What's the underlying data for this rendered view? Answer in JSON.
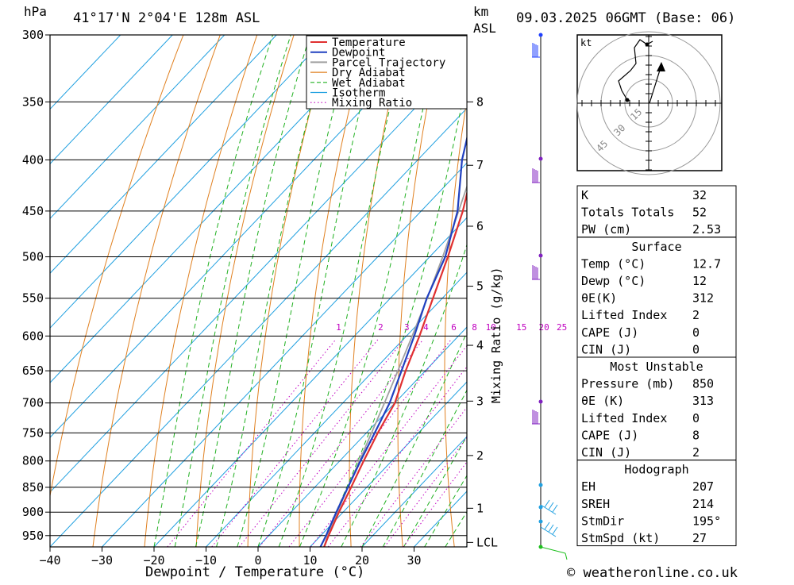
{
  "header": {
    "hpa_unit": "hPa",
    "location": "41°17'N  2°04'E  128m  ASL",
    "km_unit": "km",
    "asl_unit": "ASL",
    "datetime": "09.03.2025  06GMT  (Base: 06)"
  },
  "footer": {
    "copyright": "© weatheronline.co.uk"
  },
  "legend": [
    {
      "label": "Temperature",
      "color": "#e03030"
    },
    {
      "label": "Dewpoint",
      "color": "#2040c0"
    },
    {
      "label": "Parcel Trajectory",
      "color": "#a0a0a0"
    },
    {
      "label": "Dry Adiabat",
      "color": "#e08020"
    },
    {
      "label": "Wet Adiabat",
      "color": "#20b020"
    },
    {
      "label": "Isotherm",
      "color": "#20a0e0"
    },
    {
      "label": "Mixing Ratio",
      "color": "#c000c0"
    }
  ],
  "colors": {
    "temperature": "#e03030",
    "dewpoint": "#2040c0",
    "parcel": "#a0a0a0",
    "dry_adiabat": "#e08020",
    "wet_adiabat": "#20b020",
    "isotherm": "#20a0e0",
    "mixing_ratio": "#c000c0"
  },
  "chart_data": {
    "type": "line",
    "title": "41°17'N  2°04'E  128m  ASL",
    "xlabel": "Dewpoint / Temperature (°C)",
    "ylabel": "hPa",
    "y2label": "Mixing Ratio (g/kg)",
    "xlim": [
      -40,
      40
    ],
    "ylim": [
      975,
      300
    ],
    "y_scale": "log",
    "x_ticks": [
      "−40",
      "−30",
      "−20",
      "−10",
      "0",
      "10",
      "20",
      "30"
    ],
    "y_ticks": [
      "300",
      "350",
      "400",
      "450",
      "500",
      "550",
      "600",
      "650",
      "700",
      "750",
      "800",
      "850",
      "900",
      "950"
    ],
    "km_ticks": [
      {
        "label": "8",
        "p": 350
      },
      {
        "label": "7",
        "p": 405
      },
      {
        "label": "6",
        "p": 466
      },
      {
        "label": "5",
        "p": 535
      },
      {
        "label": "4",
        "p": 613
      },
      {
        "label": "3",
        "p": 697
      },
      {
        "label": "2",
        "p": 790
      },
      {
        "label": "1",
        "p": 892
      },
      {
        "label": "LCL",
        "p": 965
      }
    ],
    "mixing_ratio_labels": [
      "1",
      "2",
      "3",
      "4",
      "6",
      "8",
      "10",
      "15",
      "20",
      "25"
    ],
    "series": [
      {
        "name": "Temperature",
        "points": [
          {
            "p": 975,
            "t": 12.7
          },
          {
            "p": 950,
            "t": 11.5
          },
          {
            "p": 900,
            "t": 9.2
          },
          {
            "p": 850,
            "t": 7.0
          },
          {
            "p": 800,
            "t": 4.6
          },
          {
            "p": 750,
            "t": 2.2
          },
          {
            "p": 700,
            "t": 0.0
          },
          {
            "p": 650,
            "t": -3.8
          },
          {
            "p": 600,
            "t": -7.5
          },
          {
            "p": 550,
            "t": -11.8
          },
          {
            "p": 500,
            "t": -16.5
          },
          {
            "p": 450,
            "t": -22.0
          },
          {
            "p": 400,
            "t": -29.0
          },
          {
            "p": 350,
            "t": -37.0
          },
          {
            "p": 300,
            "t": -46.5
          }
        ]
      },
      {
        "name": "Dewpoint",
        "points": [
          {
            "p": 975,
            "t": 12.0
          },
          {
            "p": 950,
            "t": 11.0
          },
          {
            "p": 900,
            "t": 8.7
          },
          {
            "p": 850,
            "t": 6.4
          },
          {
            "p": 800,
            "t": 4.0
          },
          {
            "p": 750,
            "t": 1.6
          },
          {
            "p": 700,
            "t": -1.0
          },
          {
            "p": 650,
            "t": -4.6
          },
          {
            "p": 600,
            "t": -8.5
          },
          {
            "p": 550,
            "t": -13.0
          },
          {
            "p": 500,
            "t": -17.0
          },
          {
            "p": 450,
            "t": -23.0
          },
          {
            "p": 400,
            "t": -31.5
          },
          {
            "p": 350,
            "t": -39.5
          },
          {
            "p": 300,
            "t": -47.0
          }
        ]
      },
      {
        "name": "Parcel Trajectory",
        "points": [
          {
            "p": 975,
            "t": 12.7
          },
          {
            "p": 950,
            "t": 11.3
          },
          {
            "p": 900,
            "t": 8.9
          },
          {
            "p": 850,
            "t": 6.4
          },
          {
            "p": 800,
            "t": 3.8
          },
          {
            "p": 750,
            "t": 1.0
          },
          {
            "p": 700,
            "t": -2.0
          },
          {
            "p": 650,
            "t": -5.3
          },
          {
            "p": 600,
            "t": -8.9
          },
          {
            "p": 550,
            "t": -12.9
          },
          {
            "p": 500,
            "t": -17.5
          },
          {
            "p": 450,
            "t": -22.8
          },
          {
            "p": 400,
            "t": -28.8
          },
          {
            "p": 350,
            "t": -35.8
          },
          {
            "p": 300,
            "t": -44.0
          }
        ]
      }
    ]
  },
  "hodograph": {
    "unit_label": "kt",
    "ring_labels": [
      "15",
      "30",
      "45"
    ]
  },
  "indices": {
    "rows": [
      {
        "label": "K",
        "value": "32"
      },
      {
        "label": "Totals Totals",
        "value": "52"
      },
      {
        "label": "PW (cm)",
        "value": "2.53"
      }
    ],
    "sections": [
      {
        "title": "Surface",
        "rows": [
          {
            "label": "Temp (°C)",
            "value": "12.7"
          },
          {
            "label": "Dewp (°C)",
            "value": "12"
          },
          {
            "label": "θE(K)",
            "value": "312"
          },
          {
            "label": "Lifted Index",
            "value": "2"
          },
          {
            "label": "CAPE (J)",
            "value": "0"
          },
          {
            "label": "CIN (J)",
            "value": "0"
          }
        ]
      },
      {
        "title": "Most Unstable",
        "rows": [
          {
            "label": "Pressure (mb)",
            "value": "850"
          },
          {
            "label": "θE (K)",
            "value": "313"
          },
          {
            "label": "Lifted Index",
            "value": "0"
          },
          {
            "label": "CAPE (J)",
            "value": "8"
          },
          {
            "label": "CIN (J)",
            "value": "2"
          }
        ]
      },
      {
        "title": "Hodograph",
        "rows": [
          {
            "label": "EH",
            "value": "207"
          },
          {
            "label": "SREH",
            "value": "214"
          },
          {
            "label": "StmDir",
            "value": "195°"
          },
          {
            "label": "StmSpd (kt)",
            "value": "27"
          }
        ]
      }
    ]
  }
}
